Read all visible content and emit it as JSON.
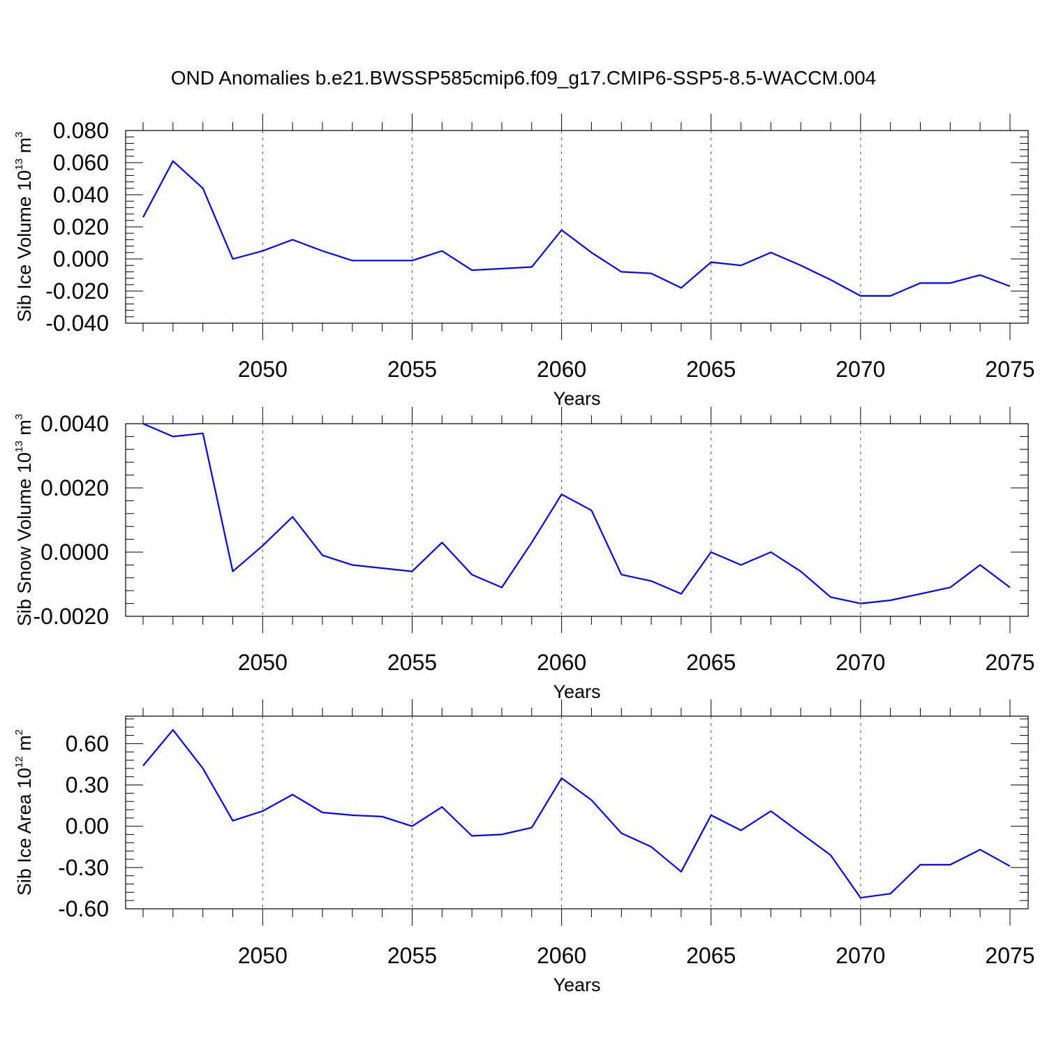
{
  "title": "OND Anomalies b.e21.BWSSP585cmip6.f09_g17.CMIP6-SSP5-8.5-WACCM.004",
  "colors": {
    "series": "#0000ff",
    "axis": "#000000",
    "grid": "#555555"
  },
  "chart_data": [
    {
      "type": "line",
      "ylabel": {
        "prefix": "Sib Ice Volume 10",
        "sup": "13",
        "mid": " m",
        "sup2": "3"
      },
      "xlabel": "Years",
      "xlim": [
        2046,
        2075
      ],
      "ylim": [
        -0.04,
        0.08
      ],
      "yticks": [
        "0.080",
        "0.060",
        "0.040",
        "0.020",
        "0.000",
        "-0.020",
        "-0.040"
      ],
      "ytick_values": [
        0.08,
        0.06,
        0.04,
        0.02,
        0.0,
        -0.02,
        -0.04
      ],
      "xticks": [
        "2050",
        "2055",
        "2060",
        "2065",
        "2070",
        "2075"
      ],
      "xtick_values": [
        2050,
        2055,
        2060,
        2065,
        2070,
        2075
      ],
      "grid": "vertical dashed at major x ticks",
      "series": [
        {
          "x": [
            2046,
            2047,
            2048,
            2049,
            2050,
            2051,
            2052,
            2053,
            2054,
            2055,
            2056,
            2057,
            2058,
            2059,
            2060,
            2061,
            2062,
            2063,
            2064,
            2065,
            2066,
            2067,
            2068,
            2069,
            2070,
            2071,
            2072,
            2073,
            2074,
            2075
          ],
          "values": [
            0.026,
            0.061,
            0.044,
            0.0,
            0.005,
            0.012,
            0.005,
            -0.001,
            -0.001,
            -0.001,
            0.005,
            -0.007,
            -0.006,
            -0.005,
            0.018,
            0.004,
            -0.008,
            -0.009,
            -0.018,
            -0.002,
            -0.004,
            0.004,
            -0.004,
            -0.013,
            -0.023,
            -0.023,
            -0.015,
            -0.015,
            -0.01,
            -0.017
          ]
        }
      ]
    },
    {
      "type": "line",
      "ylabel": {
        "prefix": "Sib Snow Volume 10",
        "sup": "13",
        "mid": " m",
        "sup2": "3"
      },
      "xlabel": "Years",
      "xlim": [
        2046,
        2075
      ],
      "ylim": [
        -0.002,
        0.004
      ],
      "yticks": [
        "0.0040",
        "0.0020",
        "0.0000",
        "-0.0020"
      ],
      "ytick_values": [
        0.004,
        0.002,
        0.0,
        -0.002
      ],
      "xticks": [
        "2050",
        "2055",
        "2060",
        "2065",
        "2070",
        "2075"
      ],
      "xtick_values": [
        2050,
        2055,
        2060,
        2065,
        2070,
        2075
      ],
      "grid": "vertical dashed at major x ticks",
      "series": [
        {
          "x": [
            2046,
            2047,
            2048,
            2049,
            2050,
            2051,
            2052,
            2053,
            2054,
            2055,
            2056,
            2057,
            2058,
            2059,
            2060,
            2061,
            2062,
            2063,
            2064,
            2065,
            2066,
            2067,
            2068,
            2069,
            2070,
            2071,
            2072,
            2073,
            2074,
            2075
          ],
          "values": [
            0.004,
            0.0036,
            0.0037,
            -0.0006,
            0.0002,
            0.0011,
            -0.0001,
            -0.0004,
            -0.0005,
            -0.0006,
            0.0003,
            -0.0007,
            -0.0011,
            0.0003,
            0.0018,
            0.0013,
            -0.0007,
            -0.0009,
            -0.0013,
            0.0,
            -0.0004,
            0.0,
            -0.0006,
            -0.0014,
            -0.0016,
            -0.0015,
            -0.0013,
            -0.0011,
            -0.0004,
            -0.0011
          ]
        }
      ]
    },
    {
      "type": "line",
      "ylabel": {
        "prefix": "Sib Ice Area 10",
        "sup": "12",
        "mid": " m",
        "sup2": "2"
      },
      "xlabel": "Years",
      "xlim": [
        2046,
        2075
      ],
      "ylim": [
        -0.6,
        0.8
      ],
      "yticks": [
        "0.60",
        "0.30",
        "0.00",
        "-0.30",
        "-0.60"
      ],
      "ytick_values": [
        0.6,
        0.3,
        0.0,
        -0.3,
        -0.6
      ],
      "xticks": [
        "2050",
        "2055",
        "2060",
        "2065",
        "2070",
        "2075"
      ],
      "xtick_values": [
        2050,
        2055,
        2060,
        2065,
        2070,
        2075
      ],
      "grid": "vertical dashed at major x ticks",
      "series": [
        {
          "x": [
            2046,
            2047,
            2048,
            2049,
            2050,
            2051,
            2052,
            2053,
            2054,
            2055,
            2056,
            2057,
            2058,
            2059,
            2060,
            2061,
            2062,
            2063,
            2064,
            2065,
            2066,
            2067,
            2068,
            2069,
            2070,
            2071,
            2072,
            2073,
            2074,
            2075
          ],
          "values": [
            0.44,
            0.7,
            0.42,
            0.04,
            0.11,
            0.23,
            0.1,
            0.08,
            0.07,
            0.0,
            0.14,
            -0.07,
            -0.06,
            -0.01,
            0.35,
            0.19,
            -0.05,
            -0.15,
            -0.33,
            0.08,
            -0.03,
            0.11,
            -0.05,
            -0.21,
            -0.52,
            -0.49,
            -0.28,
            -0.28,
            -0.17,
            -0.29
          ]
        }
      ]
    }
  ]
}
